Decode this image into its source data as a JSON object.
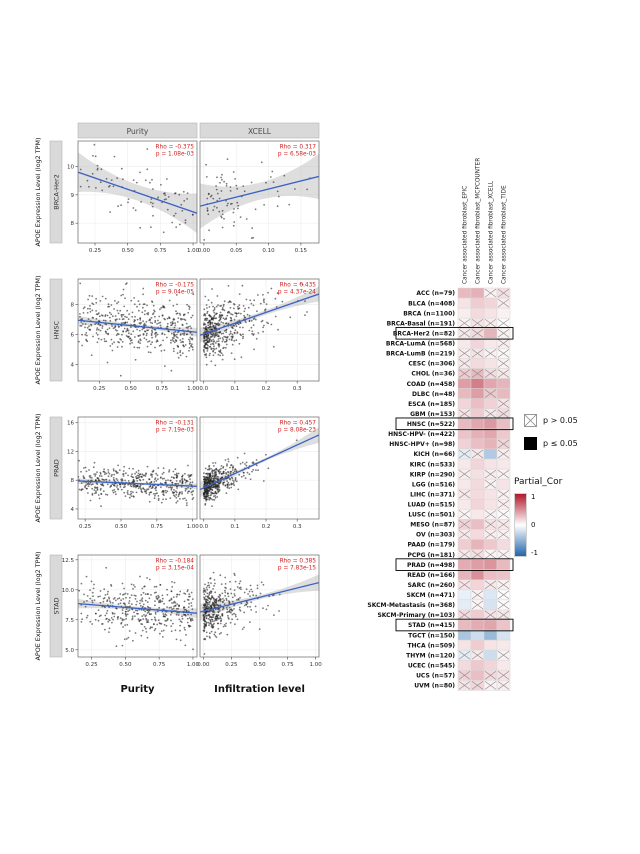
{
  "figure": {
    "description": "APOE expression vs cancer-associated fibroblast infiltration"
  },
  "chart_data": [
    {
      "type": "scatter",
      "ylabel": "APOE Expression Level (log2 TPM)",
      "col_facets": [
        "Purity",
        "XCELL"
      ],
      "xlabels": [
        "Purity",
        "Infiltration level"
      ],
      "rows": [
        {
          "facet": "BRCA-Her2",
          "ylim": [
            7.3,
            10.9
          ],
          "yticks": [
            "8",
            "9",
            "10"
          ],
          "panels": [
            {
              "facet": "Purity",
              "rho": -0.375,
              "p": "1.08e-03",
              "rho_label": "Rho = -0.375",
              "p_label": "p = 1.08e-03",
              "xlim": [
                0.12,
                1.03
              ],
              "xticks": [
                "0.25",
                "0.50",
                "0.75",
                "1.00"
              ],
              "trend": [
                9.8,
                8.35
              ],
              "n": 82,
              "xdist": "purity",
              "noise": 0.55,
              "band": [
                0.28,
                0.42
              ]
            },
            {
              "facet": "XCELL",
              "rho": 0.317,
              "p": "6.58e-03",
              "rho_label": "Rho = 0.317",
              "p_label": "p = 6.58e-03",
              "xlim": [
                -0.006,
                0.178
              ],
              "xticks": [
                "0.00",
                "0.05",
                "0.10",
                "0.15"
              ],
              "trend": [
                8.6,
                9.65
              ],
              "n": 82,
              "xdist": "infil",
              "xscale": 0.05,
              "noise": 0.6,
              "band": [
                0.3,
                0.5
              ]
            }
          ]
        },
        {
          "facet": "HNSC",
          "ylim": [
            2.9,
            9.7
          ],
          "yticks": [
            "4",
            "6",
            "8"
          ],
          "panels": [
            {
              "facet": "Purity",
              "rho": -0.175,
              "p": "9.04e-05",
              "rho_label": "Rho = -0.175",
              "p_label": "p = 9.04e-05",
              "xlim": [
                0.08,
                1.03
              ],
              "xticks": [
                "0.25",
                "0.50",
                "0.75",
                "1.00"
              ],
              "trend": [
                6.95,
                6.15
              ],
              "n": 480,
              "xdist": "purity",
              "noise": 0.95,
              "band": [
                0.12,
                0.18
              ]
            },
            {
              "facet": "XCELL",
              "rho": 0.435,
              "p": "4.37e-24",
              "rho_label": "Rho = 0.435",
              "p_label": "p = 4.37e-24",
              "xlim": [
                -0.012,
                0.37
              ],
              "xticks": [
                "0.0",
                "0.1",
                "0.2",
                "0.3"
              ],
              "trend": [
                5.95,
                8.7
              ],
              "n": 480,
              "xdist": "infil",
              "xscale": 0.065,
              "noise": 0.9,
              "band": [
                0.15,
                0.35
              ]
            }
          ]
        },
        {
          "facet": "PRAD",
          "ylim": [
            2.6,
            16.8
          ],
          "yticks": [
            "4",
            "8",
            "12",
            "16"
          ],
          "panels": [
            {
              "facet": "Purity",
              "rho": -0.131,
              "p": "7.19e-03",
              "rho_label": "Rho = -0.131",
              "p_label": "p = 7.19e-03",
              "xlim": [
                0.2,
                1.03
              ],
              "xticks": [
                "0.25",
                "0.50",
                "0.75",
                "1.00"
              ],
              "trend": [
                7.9,
                7.15
              ],
              "n": 470,
              "xdist": "purity",
              "noise": 1.05,
              "band": [
                0.16,
                0.25
              ]
            },
            {
              "facet": "XCELL",
              "rho": 0.457,
              "p": "8.08e-23",
              "rho_label": "Rho = 0.457",
              "p_label": "p = 8.08e-23",
              "xlim": [
                -0.012,
                0.37
              ],
              "xticks": [
                "0.0",
                "0.1",
                "0.2",
                "0.3"
              ],
              "trend": [
                6.7,
                14.3
              ],
              "n": 470,
              "xdist": "infil",
              "xscale": 0.042,
              "noise": 1.05,
              "band": [
                0.2,
                0.9
              ]
            }
          ]
        },
        {
          "facet": "STAD",
          "ylim": [
            4.4,
            12.9
          ],
          "yticks": [
            "5.0",
            "7.5",
            "10.0",
            "12.5"
          ],
          "panels": [
            {
              "facet": "Purity",
              "rho": -0.184,
              "p": "3.15e-04",
              "rho_label": "Rho = -0.184",
              "p_label": "p = 3.15e-04",
              "xlim": [
                0.15,
                1.03
              ],
              "xticks": [
                "0.25",
                "0.50",
                "0.75",
                "1.00"
              ],
              "trend": [
                8.85,
                8.05
              ],
              "n": 415,
              "xdist": "purity",
              "noise": 1.1,
              "band": [
                0.15,
                0.25
              ]
            },
            {
              "facet": "XCELL",
              "rho": 0.385,
              "p": "7.83e-15",
              "rho_label": "Rho = 0.385",
              "p_label": "p = 7.83e-15",
              "xlim": [
                -0.03,
                1.03
              ],
              "xticks": [
                "0.00",
                "0.25",
                "0.50",
                "0.75",
                "1.00"
              ],
              "trend": [
                8.15,
                10.6
              ],
              "n": 415,
              "xdist": "infil",
              "xscale": 0.16,
              "noise": 1.05,
              "band": [
                0.18,
                0.5
              ]
            }
          ]
        }
      ]
    },
    {
      "type": "heatmap",
      "columns": [
        "Cancer associated fibroblast_EPIC",
        "Cancer associated fibroblast_MCPCOUNTER",
        "Cancer associated fibroblast_XCELL",
        "Cancer associated fibroblast_TIDE"
      ],
      "colorscale": {
        "max": 1,
        "min": -1,
        "max_color": "#b2182b",
        "mid_color": "#ffffff",
        "min_color": "#2166ac"
      },
      "legend": {
        "p_gt": "p > 0.05",
        "p_le": "p ≤ 0.05",
        "title": "Partial_Cor",
        "scale_max": "1",
        "scale_mid": "0",
        "scale_min": "-1"
      },
      "highlighted": [
        "BRCA-Her2 (n=82)",
        "HNSC (n=522)",
        "PRAD (n=498)",
        "STAD (n=415)"
      ],
      "rows": [
        {
          "label": "ACC (n=79)",
          "values": [
            0.3,
            0.34,
            0.06,
            0.14
          ],
          "sig": [
            1,
            1,
            0,
            0
          ]
        },
        {
          "label": "BLCA (n=408)",
          "values": [
            0.12,
            0.22,
            0.18,
            0.08
          ],
          "sig": [
            1,
            1,
            1,
            0
          ]
        },
        {
          "label": "BRCA (n=1100)",
          "values": [
            0.08,
            0.16,
            0.12,
            0.06
          ],
          "sig": [
            1,
            1,
            1,
            1
          ]
        },
        {
          "label": "BRCA-Basal (n=191)",
          "values": [
            0.06,
            0.12,
            0.08,
            0.02
          ],
          "sig": [
            0,
            0,
            0,
            0
          ]
        },
        {
          "label": "BRCA-Her2 (n=82)",
          "values": [
            0.1,
            0.16,
            0.32,
            0.06
          ],
          "sig": [
            0,
            0,
            1,
            0
          ]
        },
        {
          "label": "BRCA-LumA (n=568)",
          "values": [
            0.1,
            0.18,
            0.1,
            0.08
          ],
          "sig": [
            1,
            1,
            1,
            0
          ]
        },
        {
          "label": "BRCA-LumB (n=219)",
          "values": [
            0.08,
            0.12,
            0.06,
            0.04
          ],
          "sig": [
            0,
            0,
            0,
            0
          ]
        },
        {
          "label": "CESC (n=306)",
          "values": [
            0.1,
            0.16,
            0.12,
            0.06
          ],
          "sig": [
            0,
            1,
            1,
            0
          ]
        },
        {
          "label": "CHOL (n=36)",
          "values": [
            0.22,
            0.3,
            0.15,
            0.1
          ],
          "sig": [
            0,
            0,
            0,
            0
          ]
        },
        {
          "label": "COAD (n=458)",
          "values": [
            0.42,
            0.56,
            0.38,
            0.32
          ],
          "sig": [
            1,
            1,
            1,
            1
          ]
        },
        {
          "label": "DLBC (n=48)",
          "values": [
            0.3,
            0.42,
            0.24,
            0.3
          ],
          "sig": [
            1,
            1,
            0,
            1
          ]
        },
        {
          "label": "ESCA (n=185)",
          "values": [
            0.18,
            0.28,
            0.2,
            0.12
          ],
          "sig": [
            1,
            1,
            1,
            0
          ]
        },
        {
          "label": "GBM (n=153)",
          "values": [
            0.12,
            0.22,
            0.1,
            0.15
          ],
          "sig": [
            0,
            1,
            0,
            0
          ]
        },
        {
          "label": "HNSC (n=522)",
          "values": [
            0.3,
            0.38,
            0.44,
            0.28
          ],
          "sig": [
            1,
            1,
            1,
            1
          ]
        },
        {
          "label": "HNSC-HPV- (n=422)",
          "values": [
            0.26,
            0.34,
            0.38,
            0.24
          ],
          "sig": [
            1,
            1,
            1,
            1
          ]
        },
        {
          "label": "HNSC-HPV+ (n=98)",
          "values": [
            0.2,
            0.28,
            0.33,
            0.18
          ],
          "sig": [
            1,
            1,
            1,
            0
          ]
        },
        {
          "label": "KICH (n=66)",
          "values": [
            -0.12,
            0.1,
            -0.35,
            0.08
          ],
          "sig": [
            0,
            0,
            1,
            0
          ]
        },
        {
          "label": "KIRC (n=533)",
          "values": [
            0.1,
            0.18,
            0.12,
            0.1
          ],
          "sig": [
            1,
            1,
            1,
            1
          ]
        },
        {
          "label": "KIRP (n=290)",
          "values": [
            0.08,
            0.14,
            0.08,
            0.06
          ],
          "sig": [
            0,
            1,
            0,
            0
          ]
        },
        {
          "label": "LGG (n=516)",
          "values": [
            0.1,
            0.16,
            0.06,
            0.12
          ],
          "sig": [
            1,
            1,
            0,
            1
          ]
        },
        {
          "label": "LIHC (n=371)",
          "values": [
            0.1,
            0.16,
            0.12,
            0.06
          ],
          "sig": [
            0,
            1,
            1,
            0
          ]
        },
        {
          "label": "LUAD (n=515)",
          "values": [
            0.1,
            0.18,
            0.12,
            0.08
          ],
          "sig": [
            1,
            1,
            1,
            0
          ]
        },
        {
          "label": "LUSC (n=501)",
          "values": [
            0.05,
            0.1,
            0.06,
            0.02
          ],
          "sig": [
            0,
            1,
            0,
            0
          ]
        },
        {
          "label": "MESO (n=87)",
          "values": [
            0.2,
            0.28,
            0.12,
            0.1
          ],
          "sig": [
            0,
            1,
            0,
            0
          ]
        },
        {
          "label": "OV (n=303)",
          "values": [
            0.1,
            0.16,
            0.08,
            0.06
          ],
          "sig": [
            0,
            1,
            0,
            0
          ]
        },
        {
          "label": "PAAD (n=179)",
          "values": [
            0.22,
            0.32,
            0.24,
            0.15
          ],
          "sig": [
            1,
            1,
            1,
            1
          ]
        },
        {
          "label": "PCPG (n=181)",
          "values": [
            0.1,
            0.14,
            0.05,
            0.06
          ],
          "sig": [
            0,
            0,
            0,
            0
          ]
        },
        {
          "label": "PRAD (n=498)",
          "values": [
            0.36,
            0.42,
            0.46,
            0.3
          ],
          "sig": [
            1,
            1,
            1,
            1
          ]
        },
        {
          "label": "READ (n=166)",
          "values": [
            0.32,
            0.48,
            0.28,
            0.26
          ],
          "sig": [
            1,
            1,
            1,
            1
          ]
        },
        {
          "label": "SARC (n=260)",
          "values": [
            0.12,
            0.18,
            0.1,
            0.06
          ],
          "sig": [
            0,
            1,
            0,
            0
          ]
        },
        {
          "label": "SKCM (n=471)",
          "values": [
            -0.1,
            0.06,
            -0.16,
            0.02
          ],
          "sig": [
            1,
            0,
            1,
            0
          ]
        },
        {
          "label": "SKCM-Metastasis (n=368)",
          "values": [
            -0.12,
            0.05,
            -0.18,
            0.02
          ],
          "sig": [
            1,
            0,
            1,
            0
          ]
        },
        {
          "label": "SKCM-Primary (n=103)",
          "values": [
            0.16,
            0.22,
            0.12,
            0.1
          ],
          "sig": [
            0,
            1,
            0,
            0
          ]
        },
        {
          "label": "STAD (n=415)",
          "values": [
            0.3,
            0.36,
            0.39,
            0.26
          ],
          "sig": [
            1,
            1,
            1,
            1
          ]
        },
        {
          "label": "TGCT (n=150)",
          "values": [
            -0.38,
            -0.22,
            -0.46,
            -0.18
          ],
          "sig": [
            1,
            1,
            1,
            1
          ]
        },
        {
          "label": "THCA (n=509)",
          "values": [
            0.12,
            0.22,
            0.12,
            0.1
          ],
          "sig": [
            1,
            1,
            1,
            1
          ]
        },
        {
          "label": "THYM (n=120)",
          "values": [
            -0.12,
            0.1,
            -0.22,
            0.06
          ],
          "sig": [
            0,
            0,
            1,
            0
          ]
        },
        {
          "label": "UCEC (n=545)",
          "values": [
            0.16,
            0.24,
            0.18,
            0.1
          ],
          "sig": [
            1,
            1,
            1,
            1
          ]
        },
        {
          "label": "UCS (n=57)",
          "values": [
            0.2,
            0.28,
            0.16,
            0.12
          ],
          "sig": [
            0,
            1,
            0,
            0
          ]
        },
        {
          "label": "UVM (n=80)",
          "values": [
            0.12,
            0.18,
            0.06,
            0.08
          ],
          "sig": [
            0,
            0,
            0,
            0
          ]
        }
      ]
    }
  ]
}
